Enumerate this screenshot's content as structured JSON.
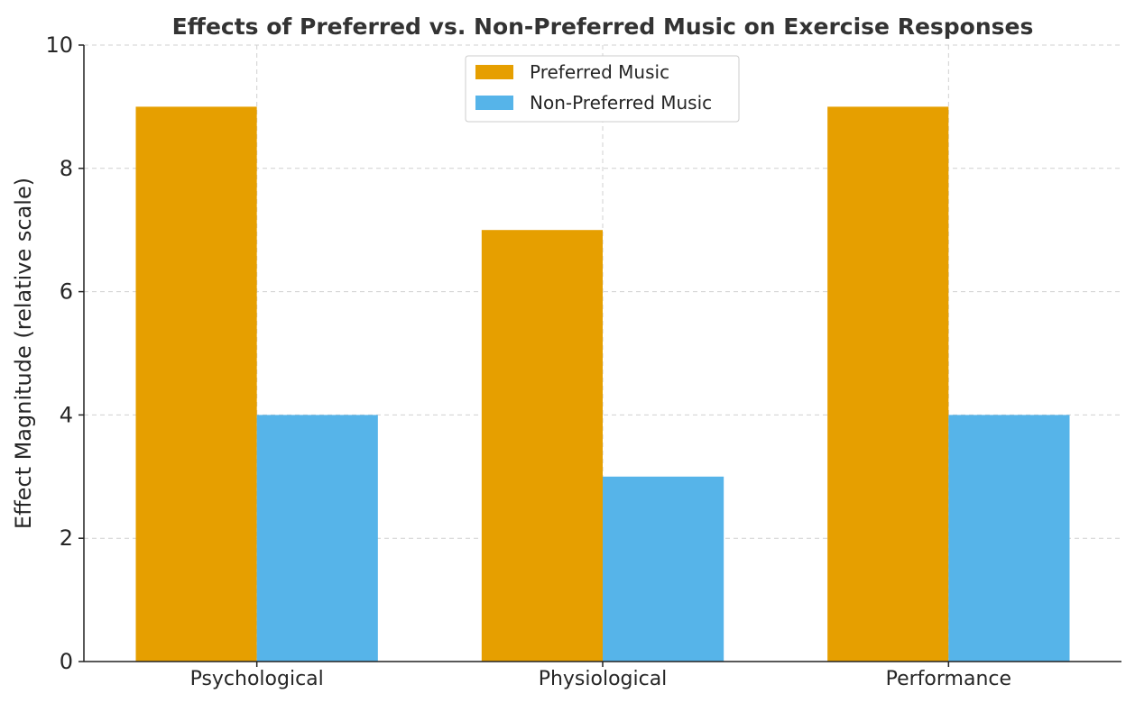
{
  "chart_data": {
    "type": "bar",
    "title": "Effects of Preferred vs. Non-Preferred Music on Exercise Responses",
    "xlabel": "",
    "ylabel": "Effect Magnitude (relative scale)",
    "categories": [
      "Psychological",
      "Physiological",
      "Performance"
    ],
    "series": [
      {
        "name": "Preferred Music",
        "values": [
          9,
          7,
          9
        ],
        "color": "#E69F00"
      },
      {
        "name": "Non-Preferred Music",
        "values": [
          4,
          3,
          4
        ],
        "color": "#56B4E9"
      }
    ],
    "ylim": [
      0,
      10
    ],
    "yticks": [
      "0",
      "2",
      "4",
      "6",
      "8",
      "10"
    ],
    "grid": true,
    "legend_position": "top-center"
  }
}
